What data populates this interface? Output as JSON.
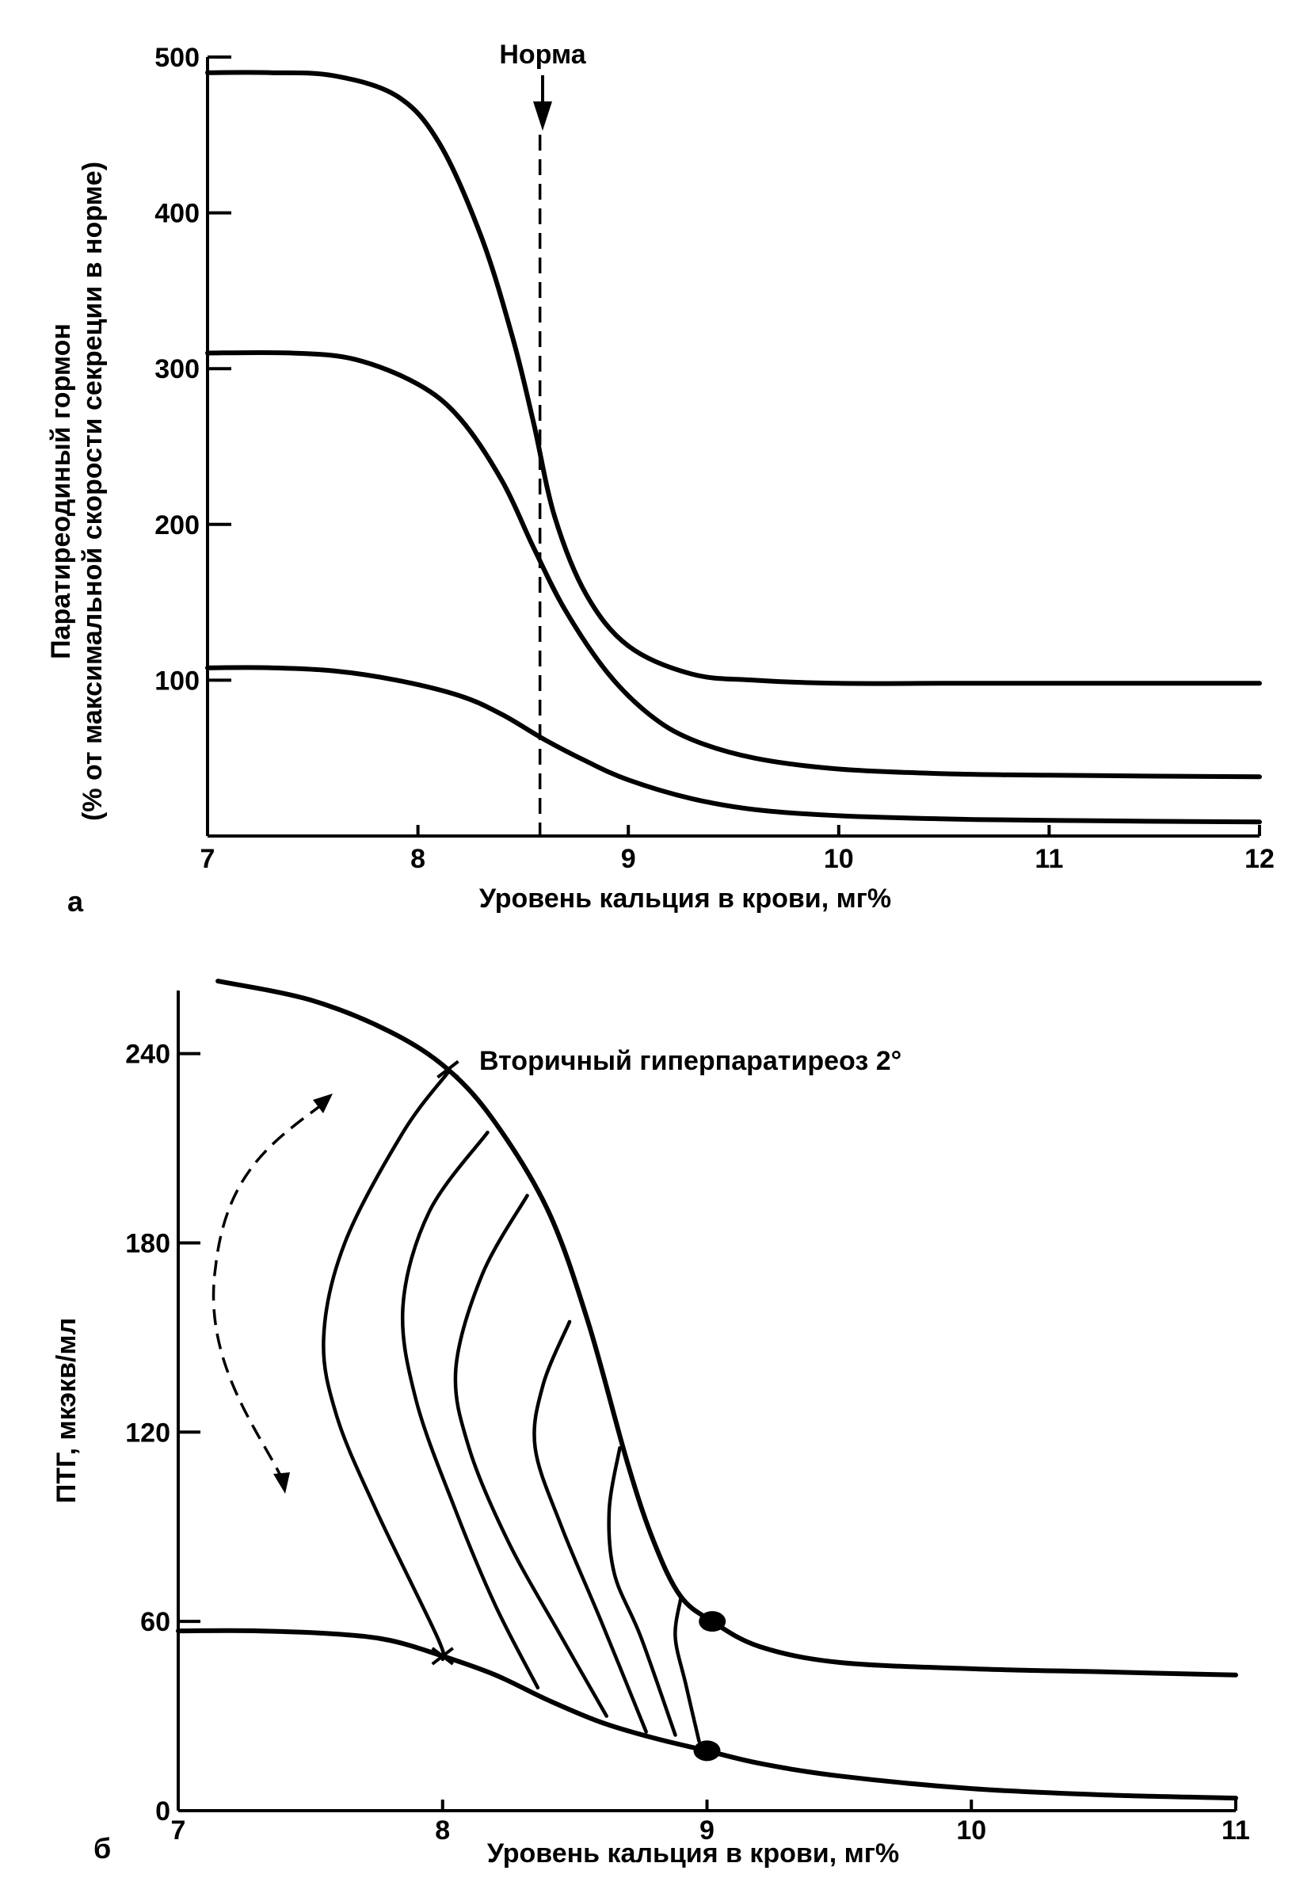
{
  "chart_data": [
    {
      "type": "line",
      "panel_label": "а",
      "xlabel": "Уровень кальция в крови, мг%",
      "ylabel_line1": "Паратиреодиный гормон",
      "ylabel_line2": "(% от максимальной скорости секреции в норме)",
      "xlim": [
        7,
        12
      ],
      "ylim": [
        0,
        500
      ],
      "x_ticks": [
        7,
        8,
        9,
        10,
        11,
        12
      ],
      "y_ticks": [
        100,
        200,
        300,
        400,
        500
      ],
      "norm_label": "Норма",
      "norm_x": 8.58,
      "grid": false,
      "series": [
        {
          "x": [
            7.0,
            7.3,
            7.6,
            7.9,
            8.1,
            8.3,
            8.45,
            8.55,
            8.65,
            8.8,
            9.0,
            9.3,
            9.6,
            10.0,
            10.5,
            11.0,
            12.0
          ],
          "y": [
            490,
            490,
            488,
            475,
            445,
            385,
            320,
            265,
            205,
            155,
            122,
            104,
            100,
            98,
            98,
            98,
            98
          ]
        },
        {
          "x": [
            7.0,
            7.4,
            7.7,
            8.0,
            8.2,
            8.4,
            8.55,
            8.7,
            8.9,
            9.1,
            9.3,
            9.6,
            10.0,
            10.5,
            11.0,
            12.0
          ],
          "y": [
            310,
            310,
            306,
            290,
            268,
            228,
            185,
            145,
            105,
            78,
            62,
            50,
            43,
            40,
            39,
            38
          ]
        },
        {
          "x": [
            7.0,
            7.3,
            7.6,
            7.9,
            8.2,
            8.4,
            8.6,
            8.8,
            9.0,
            9.3,
            9.6,
            10.0,
            10.5,
            11.0,
            12.0
          ],
          "y": [
            108,
            108,
            106,
            100,
            90,
            78,
            62,
            48,
            36,
            24,
            17,
            13,
            11,
            10,
            9
          ]
        }
      ]
    },
    {
      "type": "line",
      "panel_label": "б",
      "xlabel": "Уровень кальция в крови, мг%",
      "ylabel": "ПТГ, мкэкв/мл",
      "xlim": [
        7,
        11
      ],
      "ylim": [
        0,
        260
      ],
      "x_ticks": [
        7,
        8,
        9,
        10,
        11
      ],
      "y_ticks": [
        0,
        60,
        120,
        180,
        240
      ],
      "annotation": "Вторичный гиперпаратиреоз 2°",
      "grid": false,
      "series": [
        {
          "x": [
            7.15,
            7.5,
            7.8,
            8.02,
            8.2,
            8.4,
            8.55,
            8.7,
            8.8,
            8.9,
            9.02,
            9.2,
            9.5,
            10.0,
            10.5,
            11.0
          ],
          "y": [
            263,
            257,
            247,
            235,
            218,
            190,
            155,
            110,
            85,
            68,
            60,
            52,
            47,
            45,
            44,
            43
          ]
        },
        {
          "x": [
            7.0,
            7.3,
            7.6,
            7.8,
            8.0,
            8.2,
            8.4,
            8.6,
            8.8,
            9.0,
            9.2,
            9.5,
            10.0,
            10.5,
            11.0
          ],
          "y": [
            57,
            57,
            56,
            54,
            49,
            43,
            35,
            28,
            23,
            19,
            15,
            11,
            7,
            5,
            4
          ]
        },
        {
          "x": [
            8.02,
            7.85,
            7.63,
            7.55,
            7.6,
            7.75,
            7.98,
            8.0
          ],
          "y": [
            234,
            215,
            180,
            150,
            125,
            95,
            55,
            48
          ]
        },
        {
          "x": [
            8.17,
            7.95,
            7.85,
            7.9,
            8.05,
            8.2,
            8.36
          ],
          "y": [
            215,
            190,
            160,
            130,
            95,
            65,
            39
          ]
        },
        {
          "x": [
            8.32,
            8.15,
            8.05,
            8.1,
            8.25,
            8.45,
            8.62
          ],
          "y": [
            195,
            170,
            140,
            115,
            85,
            55,
            30
          ]
        },
        {
          "x": [
            8.48,
            8.38,
            8.35,
            8.45,
            8.6,
            8.77
          ],
          "y": [
            155,
            135,
            115,
            90,
            60,
            25
          ]
        },
        {
          "x": [
            8.67,
            8.63,
            8.65,
            8.75,
            8.88
          ],
          "y": [
            115,
            95,
            75,
            55,
            24
          ]
        },
        {
          "x": [
            8.9,
            8.88,
            8.92,
            8.97
          ],
          "y": [
            67,
            55,
            40,
            22
          ]
        }
      ],
      "markers": [
        {
          "shape": "x",
          "x": 8.02,
          "y": 235
        },
        {
          "shape": "x",
          "x": 8.0,
          "y": 49
        },
        {
          "shape": "dot",
          "x": 9.02,
          "y": 60
        },
        {
          "shape": "dot",
          "x": 9.0,
          "y": 19
        }
      ]
    }
  ]
}
